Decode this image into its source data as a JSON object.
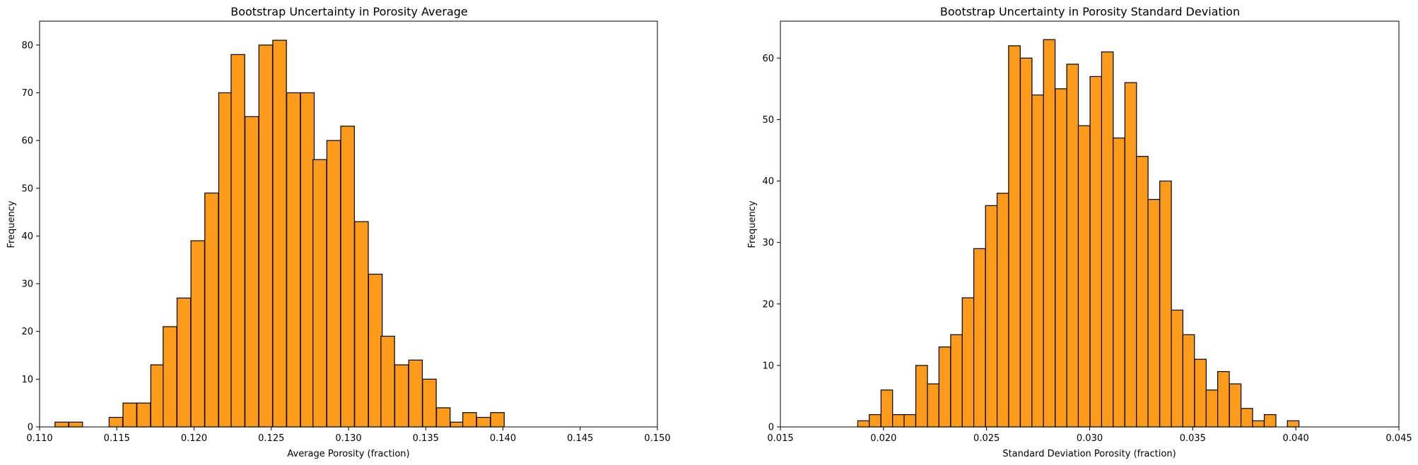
{
  "chart_data": [
    {
      "type": "bar",
      "title": "Bootstrap Uncertainty in Porosity Average",
      "xlabel": "Average Porosity (fraction)",
      "ylabel": "Frequency",
      "xlim": [
        0.11,
        0.15
      ],
      "ylim": [
        0,
        85
      ],
      "xticks": [
        "0.110",
        "0.115",
        "0.120",
        "0.125",
        "0.130",
        "0.135",
        "0.140",
        "0.145",
        "0.150"
      ],
      "yticks": [
        "0",
        "10",
        "20",
        "30",
        "40",
        "50",
        "60",
        "70",
        "80"
      ],
      "bin_width": 0.000881,
      "bins": [
        {
          "x": 0.111,
          "value": 1
        },
        {
          "x": 0.1119,
          "value": 1
        },
        {
          "x": 0.1127,
          "value": 0
        },
        {
          "x": 0.1136,
          "value": 0
        },
        {
          "x": 0.1145,
          "value": 2
        },
        {
          "x": 0.1154,
          "value": 5
        },
        {
          "x": 0.1163,
          "value": 5
        },
        {
          "x": 0.1172,
          "value": 13
        },
        {
          "x": 0.118,
          "value": 21
        },
        {
          "x": 0.1189,
          "value": 27
        },
        {
          "x": 0.1198,
          "value": 39
        },
        {
          "x": 0.1207,
          "value": 49
        },
        {
          "x": 0.1216,
          "value": 70
        },
        {
          "x": 0.1224,
          "value": 78
        },
        {
          "x": 0.1233,
          "value": 65
        },
        {
          "x": 0.1242,
          "value": 80
        },
        {
          "x": 0.1251,
          "value": 81
        },
        {
          "x": 0.126,
          "value": 70
        },
        {
          "x": 0.1269,
          "value": 70
        },
        {
          "x": 0.1277,
          "value": 56
        },
        {
          "x": 0.1286,
          "value": 60
        },
        {
          "x": 0.1295,
          "value": 63
        },
        {
          "x": 0.1304,
          "value": 43
        },
        {
          "x": 0.1313,
          "value": 32
        },
        {
          "x": 0.1321,
          "value": 19
        },
        {
          "x": 0.133,
          "value": 13
        },
        {
          "x": 0.1339,
          "value": 14
        },
        {
          "x": 0.1348,
          "value": 10
        },
        {
          "x": 0.1357,
          "value": 4
        },
        {
          "x": 0.1366,
          "value": 1
        },
        {
          "x": 0.1374,
          "value": 3
        },
        {
          "x": 0.1383,
          "value": 2
        },
        {
          "x": 0.1392,
          "value": 3
        }
      ]
    },
    {
      "type": "bar",
      "title": "Bootstrap Uncertainty in Porosity Standard Deviation",
      "xlabel": "Standard Deviation Porosity (fraction)",
      "ylabel": "Frequency",
      "xlim": [
        0.015,
        0.045
      ],
      "ylim": [
        0,
        66
      ],
      "xticks": [
        "0.015",
        "0.020",
        "0.025",
        "0.030",
        "0.035",
        "0.040",
        "0.045"
      ],
      "yticks": [
        "0",
        "10",
        "20",
        "30",
        "40",
        "50",
        "60"
      ],
      "bin_width": 0.000563,
      "bins": [
        {
          "x": 0.01875,
          "value": 1
        },
        {
          "x": 0.01931,
          "value": 2
        },
        {
          "x": 0.01988,
          "value": 6
        },
        {
          "x": 0.02044,
          "value": 2
        },
        {
          "x": 0.021,
          "value": 2
        },
        {
          "x": 0.02157,
          "value": 10
        },
        {
          "x": 0.02213,
          "value": 7
        },
        {
          "x": 0.02269,
          "value": 13
        },
        {
          "x": 0.02326,
          "value": 15
        },
        {
          "x": 0.02382,
          "value": 21
        },
        {
          "x": 0.02438,
          "value": 29
        },
        {
          "x": 0.02495,
          "value": 36
        },
        {
          "x": 0.02551,
          "value": 38
        },
        {
          "x": 0.02607,
          "value": 62
        },
        {
          "x": 0.02664,
          "value": 60
        },
        {
          "x": 0.0272,
          "value": 54
        },
        {
          "x": 0.02776,
          "value": 63
        },
        {
          "x": 0.02833,
          "value": 55
        },
        {
          "x": 0.02889,
          "value": 59
        },
        {
          "x": 0.02945,
          "value": 49
        },
        {
          "x": 0.03002,
          "value": 57
        },
        {
          "x": 0.03058,
          "value": 61
        },
        {
          "x": 0.03114,
          "value": 47
        },
        {
          "x": 0.03171,
          "value": 56
        },
        {
          "x": 0.03227,
          "value": 44
        },
        {
          "x": 0.03283,
          "value": 37
        },
        {
          "x": 0.0334,
          "value": 40
        },
        {
          "x": 0.03396,
          "value": 19
        },
        {
          "x": 0.03452,
          "value": 15
        },
        {
          "x": 0.03509,
          "value": 11
        },
        {
          "x": 0.03565,
          "value": 6
        },
        {
          "x": 0.03621,
          "value": 9
        },
        {
          "x": 0.03678,
          "value": 7
        },
        {
          "x": 0.03734,
          "value": 3
        },
        {
          "x": 0.0379,
          "value": 1
        },
        {
          "x": 0.03847,
          "value": 2
        },
        {
          "x": 0.03903,
          "value": 0
        },
        {
          "x": 0.03959,
          "value": 1
        }
      ]
    }
  ],
  "colors": {
    "bar_fill": "#ff9b1a",
    "bar_edge": "#000000",
    "axes": "#000000",
    "background": "#ffffff"
  }
}
